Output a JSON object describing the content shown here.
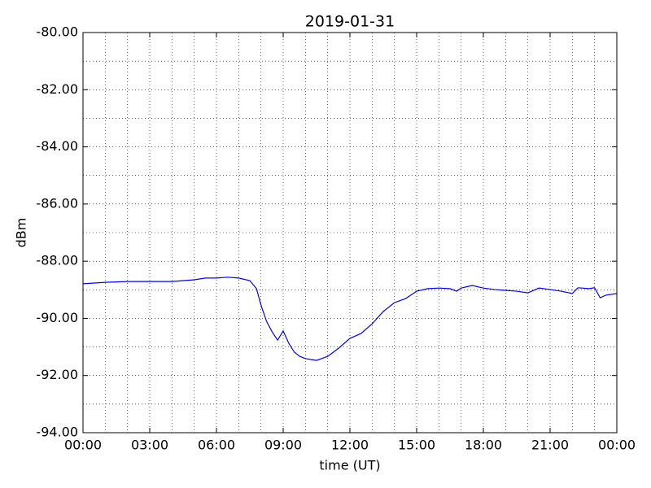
{
  "chart_data": {
    "type": "line",
    "title": "2019-01-31",
    "xlabel": "time (UT)",
    "ylabel": "dBm",
    "x": [
      0,
      1,
      2,
      3,
      4,
      5,
      5.5,
      6,
      6.5,
      7,
      7.5,
      7.8,
      8,
      8.25,
      8.5,
      8.75,
      9,
      9.25,
      9.5,
      9.75,
      10,
      10.5,
      11,
      11.5,
      12,
      12.5,
      13,
      13.5,
      14,
      14.5,
      15,
      15.5,
      16,
      16.5,
      16.8,
      17,
      17.5,
      18,
      18.5,
      19,
      19.5,
      20,
      20.5,
      21,
      21.5,
      22,
      22.25,
      22.75,
      23,
      23.25,
      23.5,
      24
    ],
    "series": [
      {
        "color": "#0000ff",
        "values": [
          -88.79,
          -88.74,
          -88.71,
          -88.71,
          -88.71,
          -88.65,
          -88.59,
          -88.59,
          -88.56,
          -88.59,
          -88.68,
          -88.96,
          -89.53,
          -90.1,
          -90.47,
          -90.76,
          -90.44,
          -90.87,
          -91.18,
          -91.33,
          -91.41,
          -91.47,
          -91.33,
          -91.04,
          -90.7,
          -90.53,
          -90.19,
          -89.76,
          -89.45,
          -89.31,
          -89.05,
          -88.96,
          -88.94,
          -88.96,
          -89.05,
          -88.94,
          -88.85,
          -88.94,
          -88.99,
          -89.02,
          -89.05,
          -89.11,
          -88.94,
          -88.99,
          -89.05,
          -89.13,
          -88.93,
          -88.96,
          -88.93,
          -89.28,
          -89.19,
          -89.13
        ]
      }
    ],
    "xlim": [
      0,
      24
    ],
    "ylim": [
      -94,
      -80
    ],
    "xticks": [
      {
        "value": 0,
        "label": "00:00"
      },
      {
        "value": 3,
        "label": "03:00"
      },
      {
        "value": 6,
        "label": "06:00"
      },
      {
        "value": 9,
        "label": "09:00"
      },
      {
        "value": 12,
        "label": "12:00"
      },
      {
        "value": 15,
        "label": "15:00"
      },
      {
        "value": 18,
        "label": "18:00"
      },
      {
        "value": 21,
        "label": "21:00"
      },
      {
        "value": 24,
        "label": "00:00"
      }
    ],
    "x_minor_ticks": [
      1,
      2,
      4,
      5,
      7,
      8,
      10,
      11,
      13,
      14,
      16,
      17,
      19,
      20,
      22,
      23
    ],
    "yticks": [
      {
        "value": -94,
        "label": "-94.00"
      },
      {
        "value": -92,
        "label": "-92.00"
      },
      {
        "value": -90,
        "label": "-90.00"
      },
      {
        "value": -88,
        "label": "-88.00"
      },
      {
        "value": -86,
        "label": "-86.00"
      },
      {
        "value": -84,
        "label": "-84.00"
      },
      {
        "value": -82,
        "label": "-82.00"
      },
      {
        "value": -80,
        "label": "-80.00"
      }
    ],
    "y_minor_ticks": [
      -93,
      -91,
      -89,
      -87,
      -85,
      -83,
      -81
    ],
    "grid": true
  }
}
